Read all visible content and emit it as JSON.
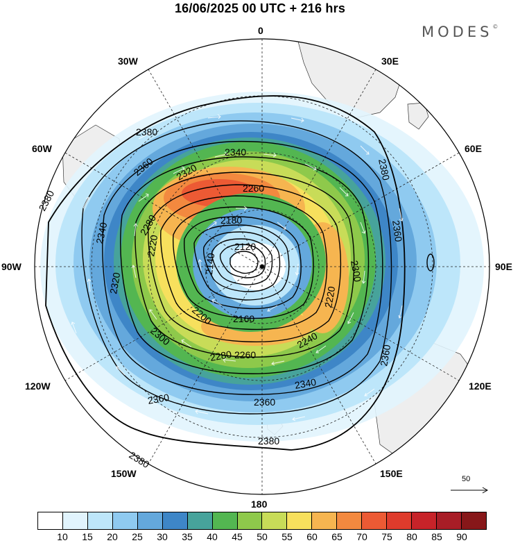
{
  "header": {
    "title": "16/06/2025  00 UTC  + 216 hrs",
    "brand": "MODES",
    "brand_mark": "©"
  },
  "map": {
    "projection": "south-polar-stereographic",
    "background_color": "#ffffff",
    "land_color": "#eeeeee",
    "longitude_labels": {
      "lon_0": "0",
      "lon_30e": "30E",
      "lon_60e": "60E",
      "lon_90e": "90E",
      "lon_120e": "120E",
      "lon_150e": "150E",
      "lon_180": "180",
      "lon_150w": "150W",
      "lon_120w": "120W",
      "lon_90w": "90W",
      "lon_60w": "60W",
      "lon_30w": "30W"
    },
    "contour_labels": {
      "c2380_a": "2380",
      "c2380_b": "2380",
      "c2380_c": "2380",
      "c2380_d": "2380",
      "c2360_a": "2360",
      "c2360_b": "2360",
      "c2360_c": "2360",
      "c2360_d": "2360",
      "c2360_e": "2360",
      "c2340_a": "2340",
      "c2340_b": "2340",
      "c2340_c": "2340",
      "c2320_a": "2320",
      "c2320_b": "2320",
      "c2300_a": "2300",
      "c2300_b": "2300",
      "c2280_a": "2280",
      "c2280_b": "2280",
      "c2260_a": "2260",
      "c2260_b": "2260",
      "c2240": "2240",
      "c2220_a": "2220",
      "c2220_b": "2220",
      "c2200": "2200",
      "c2180": "2180",
      "c2160": "2160",
      "c2140": "2140",
      "c2120": "2120"
    },
    "contour_levels": [
      2120,
      2140,
      2160,
      2180,
      2200,
      2220,
      2240,
      2260,
      2280,
      2300,
      2320,
      2340,
      2360,
      2380
    ]
  },
  "legend": {
    "colors": [
      "#ffffff",
      "#e1f4fd",
      "#bde6fa",
      "#8fcaf0",
      "#64a8dc",
      "#3e86c7",
      "#47a39b",
      "#53b651",
      "#8ec94b",
      "#c8dc58",
      "#f7e05d",
      "#f6b550",
      "#f3893f",
      "#ec5a34",
      "#de3b2c",
      "#c72329",
      "#a81d26",
      "#871719"
    ],
    "labels": [
      "10",
      "15",
      "20",
      "25",
      "30",
      "35",
      "40",
      "45",
      "50",
      "55",
      "60",
      "65",
      "70",
      "75",
      "80",
      "85",
      "90"
    ]
  },
  "vector_reference": {
    "label": "50"
  }
}
